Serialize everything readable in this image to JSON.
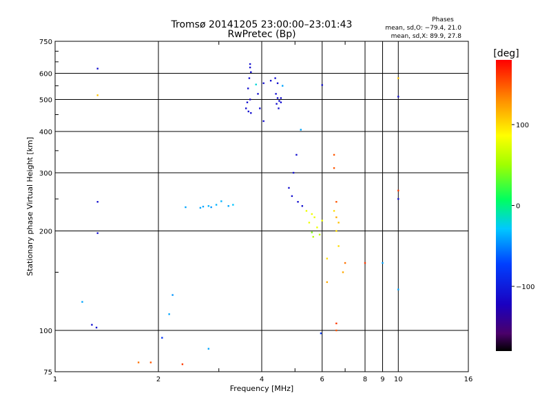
{
  "chart_data": {
    "type": "scatter",
    "title": "Tromsø 20141205 23:00:00–23:01:43",
    "subtitle": "RwPretec (Bp)",
    "xlabel": "Frequency [MHz]",
    "ylabel": "Stationary phase Virtual Height [km]",
    "x_scale": "log",
    "y_scale": "log",
    "xlim": [
      1,
      16
    ],
    "ylim": [
      75,
      750
    ],
    "x_ticks": [
      1,
      2,
      4,
      6,
      8,
      9,
      10,
      16
    ],
    "x_tick_labels": [
      "1",
      "2",
      "4",
      "6",
      "8",
      "9",
      "10",
      "16"
    ],
    "x_minor_ticks": [
      3,
      5,
      7,
      9
    ],
    "y_ticks": [
      75,
      100,
      200,
      300,
      400,
      500,
      600,
      750
    ],
    "y_tick_labels": [
      "75",
      "100",
      "200",
      "300",
      "400",
      "500",
      "600",
      "750"
    ],
    "grid": true,
    "stats": {
      "header": "Phases",
      "line1": "mean, sd,O: −79.4, 21.0",
      "line2": "mean, sd,X:  89.9, 27.8"
    },
    "colorbar": {
      "label": "[deg]",
      "range": [
        -180,
        180
      ],
      "ticks": [
        100,
        0,
        -100
      ],
      "tick_labels": [
        "100",
        "0",
        "−100"
      ],
      "colormap": "rainbow"
    },
    "series": [
      {
        "name": "",
        "points": [
          [
            1.33,
            620,
            -110
          ],
          [
            1.33,
            515,
            110
          ],
          [
            1.33,
            245,
            -110
          ],
          [
            1.33,
            197,
            -110
          ],
          [
            1.28,
            104,
            -110
          ],
          [
            1.32,
            102,
            -110
          ],
          [
            1.2,
            122,
            -40
          ],
          [
            1.75,
            80,
            140
          ],
          [
            1.9,
            80,
            150
          ],
          [
            2.35,
            79,
            160
          ],
          [
            2.8,
            88,
            -40
          ],
          [
            2.05,
            95,
            -80
          ],
          [
            2.15,
            112,
            -40
          ],
          [
            2.2,
            128,
            -45
          ],
          [
            2.4,
            236,
            -40
          ],
          [
            2.65,
            235,
            -40
          ],
          [
            2.7,
            237,
            -40
          ],
          [
            2.8,
            238,
            -35
          ],
          [
            2.85,
            236,
            -45
          ],
          [
            2.95,
            240,
            -35
          ],
          [
            3.05,
            246,
            -35
          ],
          [
            3.2,
            238,
            -40
          ],
          [
            3.3,
            240,
            -30
          ],
          [
            3.7,
            640,
            -110
          ],
          [
            3.7,
            625,
            -110
          ],
          [
            3.72,
            605,
            -110
          ],
          [
            3.68,
            580,
            -110
          ],
          [
            3.65,
            540,
            -110
          ],
          [
            3.63,
            490,
            -110
          ],
          [
            3.6,
            470,
            -110
          ],
          [
            3.66,
            460,
            -110
          ],
          [
            3.72,
            455,
            -110
          ],
          [
            3.7,
            500,
            -120
          ],
          [
            3.85,
            555,
            -20
          ],
          [
            3.9,
            520,
            -110
          ],
          [
            3.95,
            470,
            -110
          ],
          [
            4.05,
            430,
            -110
          ],
          [
            4.05,
            560,
            -110
          ],
          [
            4.25,
            570,
            -110
          ],
          [
            4.38,
            580,
            -110
          ],
          [
            4.45,
            560,
            -110
          ],
          [
            4.4,
            520,
            -110
          ],
          [
            4.45,
            505,
            -110
          ],
          [
            4.5,
            495,
            -110
          ],
          [
            4.55,
            490,
            -110
          ],
          [
            4.42,
            485,
            -110
          ],
          [
            4.55,
            505,
            -110
          ],
          [
            4.48,
            470,
            -110
          ],
          [
            4.6,
            550,
            -40
          ],
          [
            5.2,
            405,
            -40
          ],
          [
            6.0,
            553,
            -110
          ],
          [
            10.0,
            580,
            110
          ],
          [
            10.0,
            510,
            -110
          ],
          [
            10.0,
            265,
            160
          ],
          [
            10.0,
            250,
            -110
          ],
          [
            10.0,
            133,
            -40
          ],
          [
            9.0,
            160,
            -40
          ],
          [
            8.0,
            160,
            160
          ],
          [
            5.05,
            340,
            -110
          ],
          [
            4.95,
            300,
            -110
          ],
          [
            4.8,
            270,
            -110
          ],
          [
            4.9,
            255,
            -110
          ],
          [
            5.1,
            245,
            -110
          ],
          [
            5.25,
            238,
            -110
          ],
          [
            5.4,
            230,
            80
          ],
          [
            5.6,
            225,
            80
          ],
          [
            5.7,
            220,
            80
          ],
          [
            5.5,
            212,
            80
          ],
          [
            5.8,
            205,
            80
          ],
          [
            5.6,
            198,
            40
          ],
          [
            6.0,
            215,
            80
          ],
          [
            5.9,
            195,
            60
          ],
          [
            5.65,
            192,
            60
          ],
          [
            6.5,
            340,
            150
          ],
          [
            6.5,
            310,
            150
          ],
          [
            6.6,
            245,
            150
          ],
          [
            6.5,
            230,
            100
          ],
          [
            6.6,
            220,
            120
          ],
          [
            6.7,
            212,
            110
          ],
          [
            6.6,
            200,
            100
          ],
          [
            6.7,
            180,
            100
          ],
          [
            7.0,
            160,
            140
          ],
          [
            6.9,
            150,
            120
          ],
          [
            6.2,
            165,
            100
          ],
          [
            6.2,
            140,
            120
          ],
          [
            6.6,
            105,
            160
          ],
          [
            6.6,
            100,
            150
          ],
          [
            5.95,
            98,
            -80
          ]
        ]
      }
    ]
  }
}
